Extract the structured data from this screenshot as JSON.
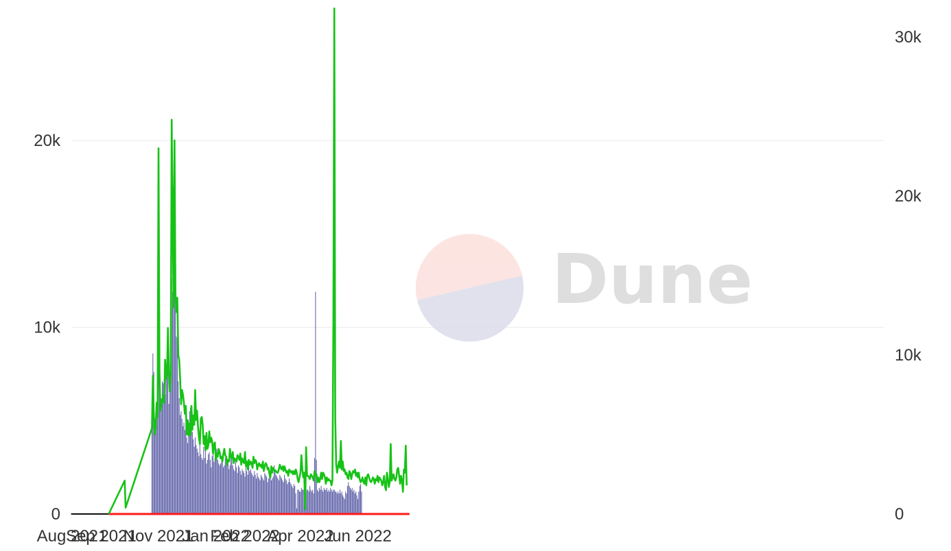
{
  "chart_data": {
    "type": "bar",
    "title": "",
    "xlabel": "",
    "ylabel": "",
    "x_ticks": [
      "Aug 2021",
      "Sep 2021",
      "Nov 2021",
      "Jan 2022",
      "Feb 2022",
      "Apr 2022",
      "Jun 2022"
    ],
    "y_left": {
      "range": [
        0,
        22700
      ],
      "ticks": [
        0,
        10000,
        20000
      ],
      "tick_labels": [
        "0",
        "10k",
        "20k"
      ]
    },
    "y_right": {
      "range": [
        0,
        32200
      ],
      "ticks": [
        0,
        10000,
        20000,
        30000
      ],
      "tick_labels": [
        "0",
        "10k",
        "20k",
        "30k"
      ]
    },
    "grid": true,
    "legend": "none",
    "watermark": "Dune",
    "colors": {
      "bars": "#5b5ea6",
      "line_green": "#17c217",
      "line_red": "#ff1a1a",
      "line_black": "#111111",
      "grid": "#ebebeb"
    },
    "series": [
      {
        "kind": "bar",
        "axis": "left",
        "values": [
          5200,
          8600,
          7600,
          5100,
          4500,
          6000,
          5500,
          19400,
          10100,
          5800,
          6200,
          7100,
          7000,
          7200,
          6400,
          7900,
          7500,
          8200,
          5900,
          7400,
          13800,
          12600,
          11900,
          17500,
          12600,
          13000,
          9500,
          9400,
          7100,
          6200,
          5300,
          5500,
          5100,
          4700,
          4900,
          4500,
          4800,
          4100,
          3800,
          4800,
          5500,
          5700,
          5100,
          4400,
          4000,
          3600,
          4100,
          3700,
          3500,
          3300,
          3100,
          3700,
          3200,
          3000,
          2900,
          3600,
          3000,
          3600,
          2700,
          2900,
          3200,
          3300,
          2900,
          2500,
          3100,
          3400,
          2800,
          3000,
          2900,
          3500,
          2900,
          2700,
          2600,
          2700,
          2800,
          3200,
          2500,
          2600,
          3000,
          2900,
          2700,
          2700,
          2400,
          2600,
          3200,
          3000,
          2600,
          2400,
          2300,
          2800,
          2500,
          2200,
          2600,
          2500,
          2300,
          2100,
          2400,
          2300,
          2200,
          2000,
          2500,
          2300,
          2100,
          2600,
          2300,
          2400,
          2200,
          2100,
          2000,
          2300,
          2100,
          1900,
          2200,
          2000,
          1900,
          1800,
          2100,
          2000,
          1900,
          1800,
          2200,
          2100,
          2000,
          1700,
          1900,
          2000,
          2100,
          1800,
          1900,
          2000,
          2600,
          2400,
          2100,
          2000,
          1900,
          1800,
          2100,
          2000,
          1900,
          1800,
          1700,
          2100,
          1900,
          1800,
          1600,
          1700,
          1900,
          1700,
          1600,
          1500,
          1400,
          1600,
          1500,
          1100,
          300,
          1300,
          1300,
          1200,
          1200,
          1400,
          1300,
          1300,
          1400,
          1300,
          1200,
          1300,
          1300,
          1200,
          1500,
          1300,
          1200,
          1300,
          1100,
          3000,
          11900,
          2900,
          1300,
          1200,
          1400,
          1300,
          1500,
          1300,
          1200,
          1400,
          1300,
          1300,
          1400,
          1200,
          1300,
          1200,
          1400,
          1300,
          1200,
          1300,
          1300,
          1200,
          1200,
          1100,
          1200,
          1100,
          1300,
          1100,
          1200,
          1000,
          900,
          800,
          1200,
          1100,
          1500,
          1700,
          1500,
          1400,
          1300,
          1400,
          1200,
          1300,
          1100,
          1200,
          1000,
          800,
          1200,
          1500,
          1600,
          1200
        ]
      },
      {
        "kind": "line",
        "axis": "right",
        "color": "green",
        "x": [
          "2021-09-09",
          "2021-09-26",
          "2021-09-27",
          "2021-10-25"
        ],
        "values": [
          0,
          2100,
          400,
          5400
        ]
      },
      {
        "kind": "line",
        "axis": "right",
        "color": "green",
        "values": [
          5400,
          8700,
          6200,
          5000,
          5500,
          7000,
          6100,
          23000,
          9000,
          6500,
          6900,
          7100,
          7500,
          7000,
          9700,
          8500,
          8800,
          11700,
          9000,
          7700,
          8900,
          24800,
          18700,
          13000,
          23500,
          13900,
          12700,
          13600,
          10000,
          9700,
          8500,
          6900,
          7800,
          7500,
          7000,
          6300,
          6800,
          5000,
          5900,
          4900,
          5700,
          5000,
          6800,
          5300,
          6200,
          5600,
          7800,
          5900,
          6500,
          5500,
          4800,
          4400,
          6000,
          6100,
          5600,
          4400,
          4900,
          4000,
          5100,
          4100,
          4300,
          5200,
          4500,
          4800,
          4600,
          3800,
          4400,
          4500,
          3400,
          3800,
          3600,
          4100,
          3900,
          3500,
          3600,
          3300,
          3800,
          4100,
          3700,
          3600,
          3100,
          3400,
          3300,
          4100,
          3600,
          3500,
          3900,
          3200,
          3500,
          3400,
          3300,
          3700,
          3600,
          3400,
          3800,
          3100,
          3500,
          3300,
          3200,
          3900,
          3000,
          3300,
          2800,
          3400,
          3100,
          3300,
          3200,
          2900,
          3600,
          3200,
          3400,
          3300,
          2800,
          3100,
          3200,
          3000,
          3100,
          2900,
          3300,
          2700,
          3000,
          3200,
          3100,
          2800,
          2900,
          2500,
          2300,
          3000,
          2600,
          2900,
          2800,
          2700,
          2700,
          2600,
          2600,
          2800,
          3100,
          2900,
          2800,
          3000,
          2700,
          3000,
          2800,
          2600,
          2700,
          2400,
          2800,
          2700,
          2600,
          2700,
          2500,
          2700,
          2500,
          2800,
          2600,
          2200,
          2000,
          2300,
          2600,
          3700,
          2800,
          2300,
          2600,
          300,
          4200,
          2400,
          2400,
          2300,
          2200,
          2500,
          2400,
          2300,
          2100,
          2700,
          2400,
          2500,
          2000,
          2300,
          2000,
          2200,
          2600,
          2200,
          2600,
          2500,
          2300,
          1900,
          2300,
          2100,
          2200,
          2100,
          2100,
          1800,
          2100,
          12000,
          31800,
          6000,
          3100,
          2600,
          3000,
          3300,
          2900,
          4600,
          2800,
          3300,
          2700,
          2800,
          2500,
          2600,
          2300,
          2200,
          2700,
          2600,
          2200,
          2500,
          2700,
          2600,
          2800,
          2400,
          2600,
          2300,
          2600,
          2200,
          2000,
          2100,
          2300,
          2000,
          1900,
          2300,
          1800,
          2400,
          2500,
          2300,
          2100,
          2000,
          2100,
          2300,
          2200,
          1900,
          2200,
          2100,
          2400,
          2000,
          2300,
          2200,
          2100,
          1800,
          2000,
          2400,
          1700,
          1500,
          2600,
          2200,
          1700,
          2000,
          4400,
          2100,
          2300,
          2500,
          2200,
          2100,
          2300,
          2800,
          2900,
          2400,
          1900,
          2400,
          2100,
          1400,
          2800,
          2600,
          4300,
          1800
        ]
      },
      {
        "kind": "line",
        "axis": "left",
        "color": "black",
        "x": [
          "2021-07-31",
          "2021-09-09"
        ],
        "values": [
          0,
          0
        ]
      },
      {
        "kind": "line",
        "axis": "left",
        "color": "red",
        "x": [
          "2021-09-09",
          "2022-07-26"
        ],
        "values": [
          0,
          0
        ]
      }
    ]
  }
}
